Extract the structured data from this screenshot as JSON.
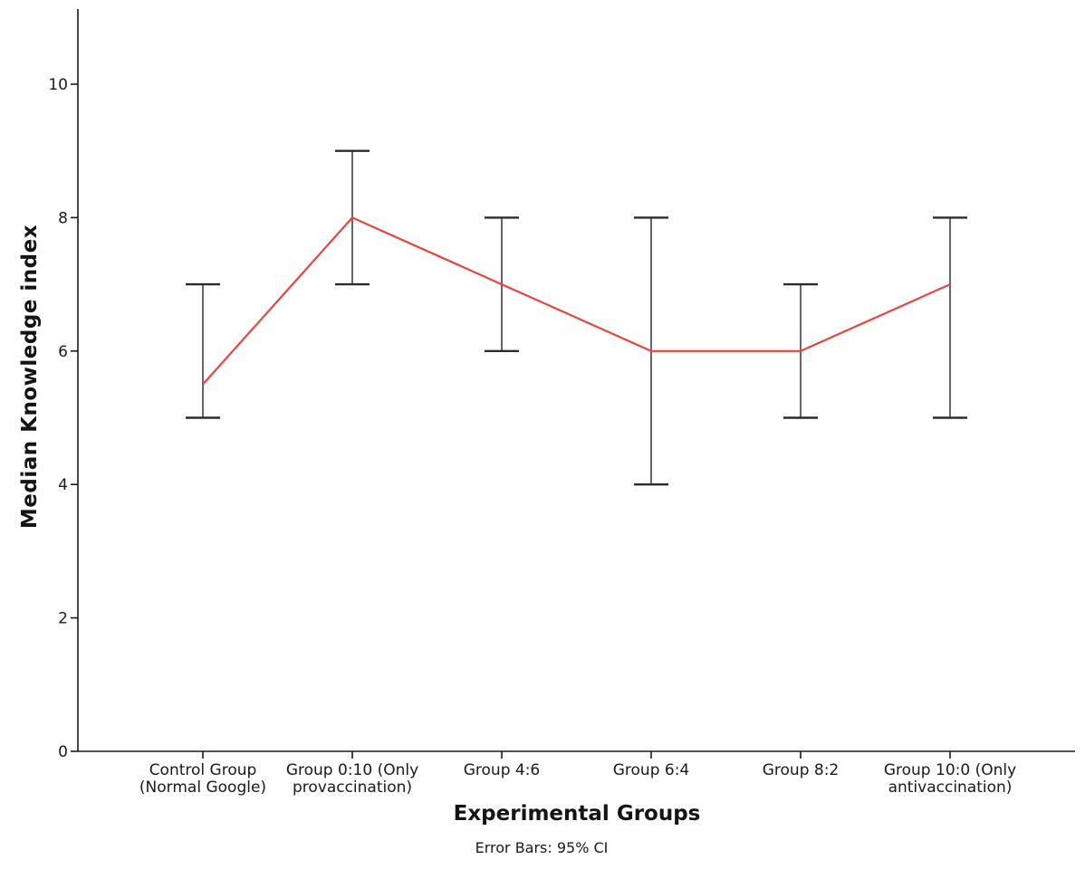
{
  "chart_data": {
    "type": "line",
    "title": "",
    "categories": [
      "Control Group (Normal Google)",
      "Group 0:10 (Only provaccination)",
      "Group 4:6",
      "Group 6:4",
      "Group 8:2",
      "Group 10:0 (Only antivaccination)"
    ],
    "category_label_lines": [
      [
        "Control Group",
        "(Normal Google)"
      ],
      [
        "Group 0:10 (Only",
        "provaccination)"
      ],
      [
        "Group 4:6"
      ],
      [
        "Group 6:4"
      ],
      [
        "Group 8:2"
      ],
      [
        "Group 10:0 (Only",
        "antivaccination)"
      ]
    ],
    "series": [
      {
        "name": "Median Knowledge index",
        "values": [
          5.5,
          8,
          7,
          6,
          6,
          7
        ]
      }
    ],
    "error_bars": {
      "label": "95% CI",
      "low": [
        5,
        7,
        6,
        4,
        5,
        5
      ],
      "high": [
        7,
        9,
        8,
        8,
        7,
        8
      ]
    },
    "xlabel": "Experimental Groups",
    "ylabel": "Median Knowledge index",
    "footnote": "Error Bars: 95% CI",
    "yticks": [
      0,
      2,
      4,
      6,
      8,
      10
    ],
    "ylim": [
      0,
      11.1
    ],
    "grid": false,
    "legend": "none",
    "colors": {
      "line": "#e94440",
      "error_bar_line": "#565656",
      "error_bar_cap": "#2b2b2b",
      "axis": "#1a1a1a",
      "background": "#ffffff"
    }
  }
}
